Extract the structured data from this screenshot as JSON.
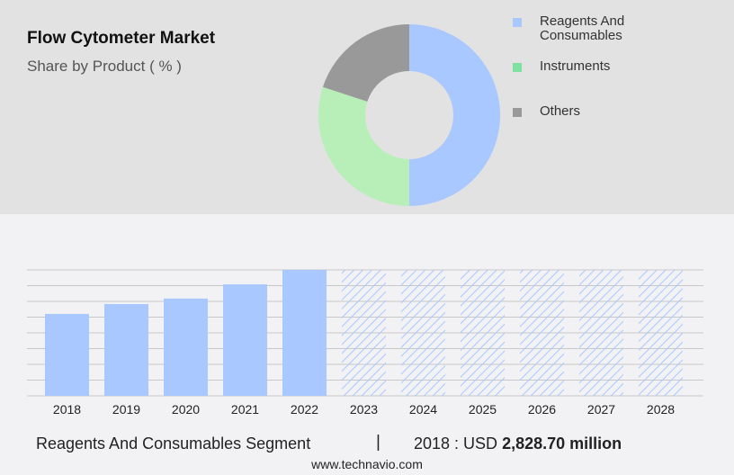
{
  "header": {
    "title": "Flow Cytometer Market",
    "subtitle": "Share by Product ( % )"
  },
  "chart_data": [
    {
      "type": "pie",
      "variant": "donut",
      "legend_position": "right",
      "labels": [
        "Reagents And Consumables",
        "Instruments",
        "Others"
      ],
      "values": [
        50,
        30,
        20
      ],
      "colors": [
        "#a8c8ff",
        "#b8eeb8",
        "#999999"
      ],
      "legend_colors": [
        "#a8c8ff",
        "#80e0a0",
        "#999999"
      ]
    },
    {
      "type": "bar",
      "grid": true,
      "categories": [
        "2018",
        "2019",
        "2020",
        "2021",
        "2022",
        "2023",
        "2024",
        "2025",
        "2026",
        "2027",
        "2028"
      ],
      "values": [
        2828.7,
        3170,
        3360,
        3850,
        4350,
        null,
        null,
        null,
        null,
        null,
        null
      ],
      "forecast_years": [
        "2023",
        "2024",
        "2025",
        "2026",
        "2027",
        "2028"
      ],
      "color": "#a8c8ff",
      "ylim": [
        0,
        4350
      ]
    }
  ],
  "footer": {
    "segment": "Reagents And Consumables Segment",
    "separator": "|",
    "year_label": "2018 : USD",
    "value": "2,828.70 million",
    "site": "www.technavio.com"
  }
}
